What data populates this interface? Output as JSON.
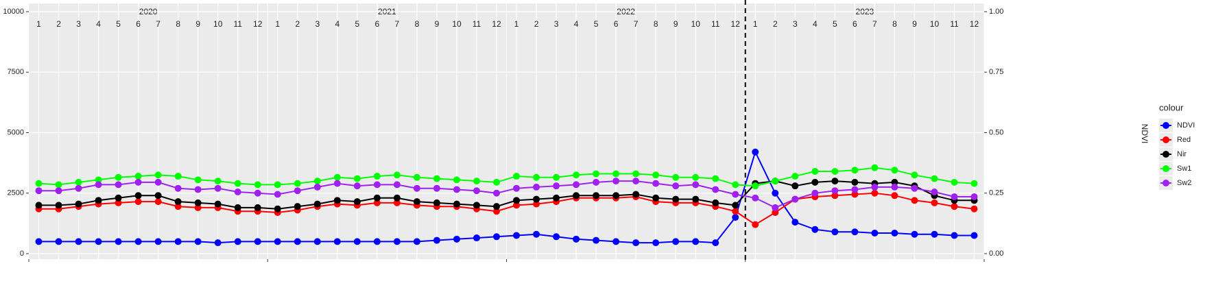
{
  "chart_data": {
    "type": "line",
    "facets": [
      "2020",
      "2021",
      "2022",
      "2023"
    ],
    "categories": [
      "1",
      "2",
      "3",
      "4",
      "5",
      "6",
      "7",
      "8",
      "9",
      "10",
      "11",
      "12",
      "1",
      "2",
      "3",
      "4",
      "5",
      "6",
      "7",
      "8",
      "9",
      "10",
      "11",
      "12",
      "1",
      "2",
      "3",
      "4",
      "5",
      "6",
      "7",
      "8",
      "9",
      "10",
      "11",
      "12",
      "1",
      "2",
      "3",
      "4",
      "5",
      "6",
      "7",
      "8",
      "9",
      "10",
      "11",
      "12"
    ],
    "y2label": "NDVI",
    "legend_title": "colour",
    "ylim": [
      0,
      10000
    ],
    "yticks": [
      0,
      2500,
      5000,
      7500,
      10000
    ],
    "y2lim": [
      0,
      1
    ],
    "y2ticks": [
      {
        "value": 0,
        "label": "0.00"
      },
      {
        "value": 0.25,
        "label": "0.25"
      },
      {
        "value": 0.5,
        "label": "0.50"
      },
      {
        "value": 0.75,
        "label": "0.75"
      },
      {
        "value": 1,
        "label": "1.00"
      }
    ],
    "grid": true,
    "series": [
      {
        "name": "NDVI",
        "color": "#0000ff",
        "axis": "y2",
        "values": [
          0.05,
          0.05,
          0.05,
          0.05,
          0.05,
          0.05,
          0.05,
          0.05,
          0.05,
          0.045,
          0.05,
          0.05,
          0.05,
          0.05,
          0.05,
          0.05,
          0.05,
          0.05,
          0.05,
          0.05,
          0.055,
          0.06,
          0.065,
          0.07,
          0.075,
          0.08,
          0.07,
          0.06,
          0.055,
          0.05,
          0.045,
          0.045,
          0.05,
          0.05,
          0.045,
          0.15,
          0.42,
          0.25,
          0.13,
          0.1,
          0.09,
          0.09,
          0.085,
          0.085,
          0.08,
          0.08,
          0.075,
          0.075
        ]
      },
      {
        "name": "Red",
        "color": "#ff0000",
        "values": [
          1850,
          1850,
          1950,
          2050,
          2100,
          2150,
          2150,
          1950,
          1900,
          1900,
          1750,
          1750,
          1700,
          1800,
          1950,
          2050,
          2000,
          2100,
          2100,
          2000,
          1950,
          1950,
          1850,
          1750,
          2000,
          2050,
          2150,
          2300,
          2300,
          2300,
          2350,
          2150,
          2100,
          2100,
          1950,
          1750,
          1200,
          1700,
          2250,
          2350,
          2400,
          2450,
          2500,
          2400,
          2200,
          2100,
          1950,
          1850
        ]
      },
      {
        "name": "Nir",
        "color": "#000000",
        "values": [
          2000,
          2000,
          2050,
          2200,
          2300,
          2400,
          2400,
          2150,
          2100,
          2050,
          1900,
          1900,
          1850,
          1950,
          2050,
          2200,
          2150,
          2300,
          2300,
          2150,
          2100,
          2050,
          2000,
          1950,
          2200,
          2250,
          2300,
          2400,
          2400,
          2400,
          2450,
          2300,
          2250,
          2250,
          2100,
          2000,
          2900,
          3000,
          2800,
          2950,
          3000,
          2950,
          2900,
          2950,
          2800,
          2400,
          2200,
          2200
        ]
      },
      {
        "name": "Sw1",
        "color": "#00ff00",
        "values": [
          2900,
          2850,
          2950,
          3050,
          3150,
          3200,
          3250,
          3200,
          3050,
          3000,
          2900,
          2850,
          2850,
          2900,
          3000,
          3150,
          3100,
          3200,
          3250,
          3150,
          3100,
          3050,
          3000,
          2950,
          3200,
          3150,
          3150,
          3250,
          3300,
          3300,
          3300,
          3250,
          3150,
          3150,
          3100,
          2850,
          2800,
          3000,
          3200,
          3400,
          3400,
          3450,
          3550,
          3450,
          3250,
          3100,
          2950,
          2900
        ]
      },
      {
        "name": "Sw2",
        "color": "#a020f0",
        "values": [
          2600,
          2600,
          2700,
          2850,
          2850,
          2950,
          2950,
          2700,
          2650,
          2700,
          2550,
          2500,
          2450,
          2600,
          2750,
          2900,
          2800,
          2850,
          2850,
          2700,
          2700,
          2650,
          2600,
          2500,
          2700,
          2750,
          2800,
          2850,
          2950,
          3000,
          3000,
          2900,
          2800,
          2850,
          2650,
          2450,
          2300,
          1900,
          2250,
          2500,
          2600,
          2650,
          2750,
          2750,
          2700,
          2550,
          2350,
          2350
        ]
      }
    ]
  }
}
